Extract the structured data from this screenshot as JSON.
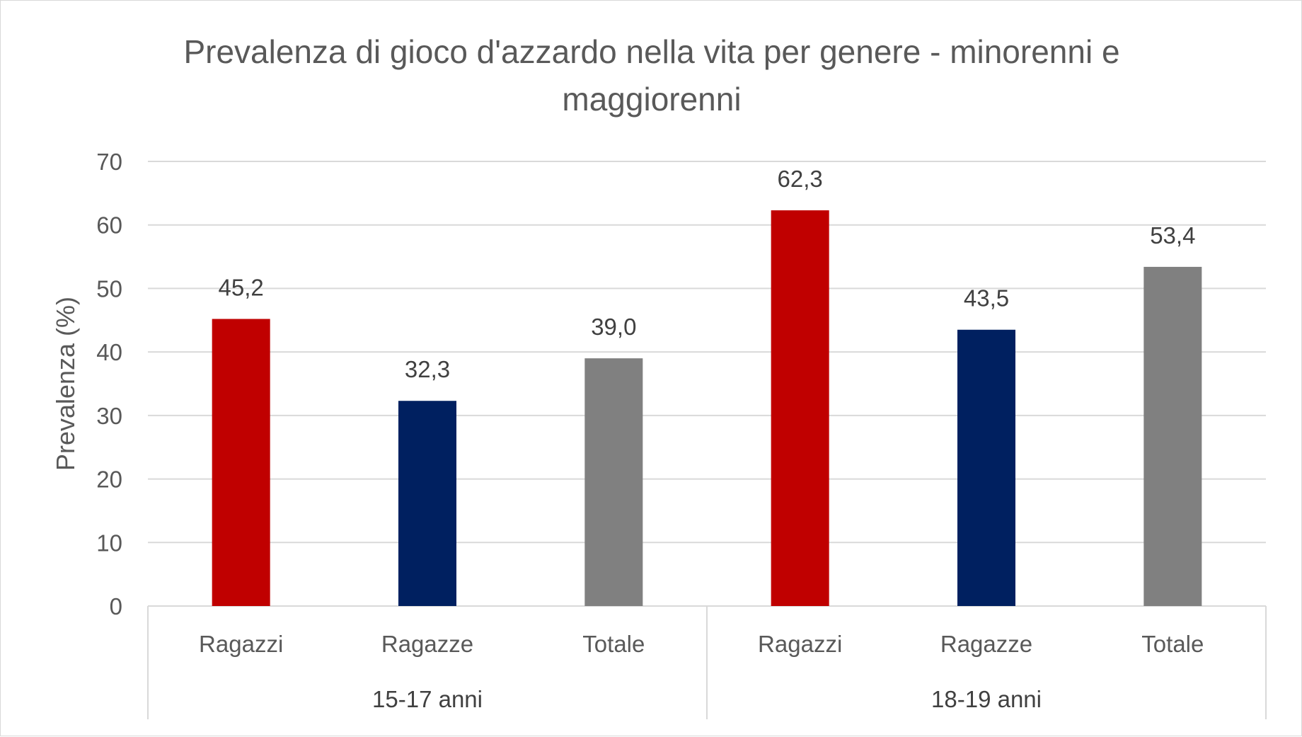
{
  "chart_data": {
    "type": "bar",
    "title_line1": "Prevalenza di gioco d'azzardo nella vita per genere - minorenni e",
    "title_line2": "maggiorenni",
    "xlabel": "",
    "ylabel": "Prevalenza (%)",
    "ylim": [
      0,
      70
    ],
    "yticks": [
      "0",
      "10",
      "20",
      "30",
      "40",
      "50",
      "60",
      "70"
    ],
    "grid": true,
    "legend": "none",
    "groups": [
      {
        "name": "15-17 anni",
        "bars": [
          {
            "category": "Ragazzi",
            "value": 45.2,
            "label": "45,2",
            "color": "#c00000"
          },
          {
            "category": "Ragazze",
            "value": 32.3,
            "label": "32,3",
            "color": "#002060"
          },
          {
            "category": "Totale",
            "value": 39.0,
            "label": "39,0",
            "color": "#808080"
          }
        ]
      },
      {
        "name": "18-19 anni",
        "bars": [
          {
            "category": "Ragazzi",
            "value": 62.3,
            "label": "62,3",
            "color": "#c00000"
          },
          {
            "category": "Ragazze",
            "value": 43.5,
            "label": "43,5",
            "color": "#002060"
          },
          {
            "category": "Totale",
            "value": 53.4,
            "label": "53,4",
            "color": "#808080"
          }
        ]
      }
    ]
  }
}
